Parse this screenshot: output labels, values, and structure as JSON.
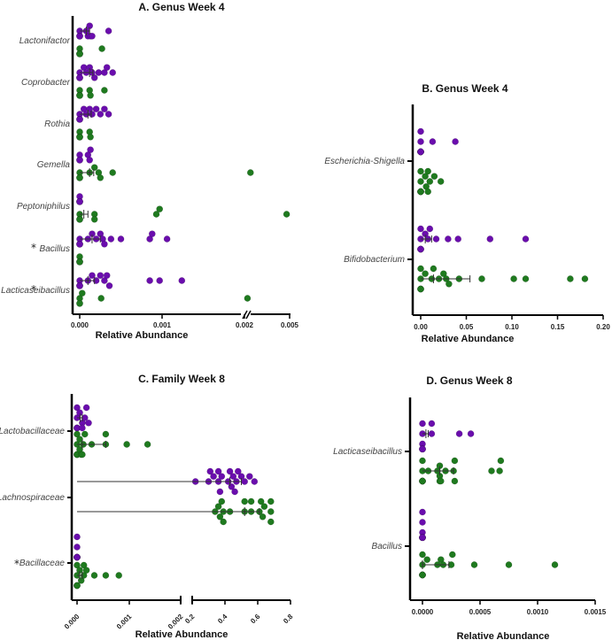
{
  "colors": {
    "group1": "#6a0dad",
    "group2": "#1f7a1f",
    "axis": "#000000",
    "errorbar": "#333333"
  },
  "chart_data": [
    {
      "id": "A",
      "type": "scatter",
      "title": "A. Genus Week 4",
      "xlabel": "Relative Abundance",
      "ylabel": "",
      "orientation": "horizontal",
      "axis_break": {
        "from": 0.0015,
        "to": 0.002,
        "upper_range": [
          0.002,
          0.005
        ]
      },
      "xlim": [
        0,
        0.005
      ],
      "xticks": [
        "0.000",
        "0.001",
        "0.002",
        "0.005"
      ],
      "grid": false,
      "categories": [
        {
          "name": "Lactonifactor",
          "marker": "",
          "purple": [
            0,
            0,
            0,
            0,
            0,
            8e-05,
            0.00012,
            0.00015,
            0.0001,
            0.00013,
            0.00035
          ],
          "purple_mean": 8e-05,
          "purple_sem": 4e-05,
          "green": [
            0,
            0,
            0,
            0,
            0,
            0,
            0.00027
          ]
        },
        {
          "name": "Coprobacter",
          "marker": "",
          "purple": [
            0,
            0,
            0,
            0,
            0,
            5e-05,
            8e-05,
            0.00012,
            0.00015,
            0.00018,
            0.00023,
            0.0003,
            0.00033,
            0.0004
          ],
          "purple_mean": 0.00012,
          "purple_sem": 4e-05,
          "green": [
            0,
            0,
            0,
            0,
            0,
            0.00012,
            0.00013,
            0.0003
          ]
        },
        {
          "name": "Rothia",
          "marker": "",
          "purple": [
            0,
            0,
            0,
            0,
            0,
            5e-05,
            8e-05,
            0.00012,
            0.00015,
            0.0002,
            0.00025,
            0.0003,
            0.00035
          ],
          "purple_mean": 0.0001,
          "purple_sem": 4e-05,
          "green": [
            0,
            0,
            0,
            0,
            0,
            0.00013,
            0.00012
          ]
        },
        {
          "name": "Gemella",
          "marker": "",
          "purple": [
            0,
            0,
            0,
            0,
            0.00012,
            0.00013,
            0.0001
          ],
          "green": [
            0,
            0,
            0,
            0,
            0.00012,
            0.00018,
            0.00025,
            0.00023,
            0.0004,
            0.0024
          ],
          "green_mean": 0.00012,
          "green_sem": 5e-05
        },
        {
          "name": "Peptoniphilus",
          "marker": "",
          "purple": [
            0,
            0,
            0,
            0,
            0,
            0
          ],
          "green": [
            0,
            0,
            0,
            0,
            0.00018,
            0.00018,
            0.00097,
            0.00093,
            0.0048
          ],
          "green_mean": 5e-05,
          "green_sem": 5e-05
        },
        {
          "name": "Bacillus",
          "marker": "*",
          "purple": [
            0,
            0,
            0,
            0,
            0,
            0.0001,
            0.00015,
            0.0002,
            0.00025,
            0.00028,
            0.0003,
            0.00038,
            0.0005,
            0.00088,
            0.00085,
            0.00106
          ],
          "purple_mean": 0.00015,
          "purple_sem": 0.0001,
          "green": [
            0,
            0,
            0,
            0,
            0
          ]
        },
        {
          "name": "Lacticaseibacillus",
          "marker": "*",
          "purple": [
            0,
            0,
            0,
            0,
            0,
            0.0001,
            0.00015,
            0.0002,
            0.00025,
            0.0003,
            0.00033,
            0.00036,
            0.00085,
            0.00097,
            0.00124
          ],
          "purple_mean": 0.0001,
          "purple_sem": 8e-05,
          "green": [
            0,
            0,
            0,
            3e-05,
            0.00026,
            0.0022
          ]
        }
      ]
    },
    {
      "id": "B",
      "type": "scatter",
      "title": "B. Genus Week 4",
      "xlabel": "Relative Abundance",
      "orientation": "horizontal",
      "xlim": [
        0,
        0.2
      ],
      "xticks": [
        "0.00",
        "0.05",
        "0.10",
        "0.15",
        "0.20"
      ],
      "grid": false,
      "categories": [
        {
          "name": "Escherichia-Shigella",
          "purple": [
            0,
            0,
            0,
            0,
            0,
            0,
            0,
            0,
            0,
            0,
            0.013,
            0.038
          ],
          "green": [
            0,
            0,
            0,
            0,
            0,
            0,
            0,
            0,
            0.005,
            0.008,
            0.006,
            0.01,
            0.022,
            0.015,
            0.008
          ]
        },
        {
          "name": "Bifidobacterium",
          "purple": [
            0,
            0,
            0,
            0,
            0,
            0,
            0,
            0.005,
            0.008,
            0.01,
            0.017,
            0.03,
            0.041,
            0.076,
            0.115
          ],
          "purple_mean": 0.005,
          "purple_sem": 0.007,
          "green": [
            0,
            0,
            0,
            0,
            0,
            0,
            0.005,
            0.012,
            0.014,
            0.02,
            0.025,
            0.028,
            0.031,
            0.042,
            0.067,
            0.102,
            0.115,
            0.164,
            0.18
          ],
          "green_mean": 0.014,
          "green_sem": 0.04
        }
      ]
    },
    {
      "id": "C",
      "type": "scatter",
      "title": "C. Family Week 8",
      "xlabel": "Relative Abundance",
      "orientation": "horizontal",
      "axis_break": {
        "lower_range": [
          0,
          0.002
        ],
        "upper_range": [
          0.2,
          0.8
        ]
      },
      "xticks": [
        "0.000",
        "0.001",
        "0.002",
        "0.2",
        "0.4",
        "0.6",
        "0.8"
      ],
      "grid": false,
      "categories": [
        {
          "name": "Lactobacillaceae",
          "marker": "",
          "purple": [
            0,
            0,
            0,
            0,
            0,
            0,
            5e-05,
            0.0001,
            0.00015,
            0.00022,
            0.00018,
            0.0001
          ],
          "purple_mean": 6e-05,
          "purple_sem": 4e-05,
          "green": [
            0,
            0,
            0,
            0,
            0,
            0,
            5e-05,
            0.00012,
            8e-05,
            0.00015,
            0.00028,
            0.00055,
            0.00055,
            0.00095,
            0.00135,
            0.0001,
            5e-05
          ],
          "green_mean": 0.0001,
          "green_sem": 0.00045
        },
        {
          "name": "Lachnospiraceae",
          "marker": "",
          "purple": [
            0.22,
            0.3,
            0.33,
            0.37,
            0.36,
            0.38,
            0.43,
            0.46,
            0.44,
            0.45,
            0.47,
            0.48,
            0.5,
            0.52,
            0.55,
            0.58,
            0.31,
            0.36,
            0.42
          ],
          "purple_mean": 0.43,
          "purple_sem": 0.07,
          "green": [
            0.34,
            0.36,
            0.37,
            0.38,
            0.39,
            0.39,
            0.43,
            0.52,
            0.52,
            0.56,
            0.56,
            0.61,
            0.63,
            0.64,
            0.68,
            0.68,
            0.68,
            0.62
          ],
          "green_mean": 0.52,
          "green_sem": 0.09
        },
        {
          "name": "Bacillaceae",
          "marker": "*",
          "purple": [
            0,
            0,
            0,
            0,
            0,
            0,
            0,
            0,
            0
          ],
          "green": [
            0,
            0,
            0,
            0,
            0,
            0,
            5e-05,
            0.00013,
            0.00018,
            0.00013,
            8e-05,
            0.00033,
            0.00055,
            0.0008
          ],
          "green_mean": 5e-05,
          "green_sem": 5e-05
        }
      ]
    },
    {
      "id": "D",
      "type": "scatter",
      "title": "D. Genus Week 8",
      "xlabel": "Relative Abundance",
      "orientation": "horizontal",
      "xlim": [
        0,
        0.0015
      ],
      "xticks": [
        "0.0000",
        "0.0005",
        "0.0010",
        "0.0015"
      ],
      "grid": false,
      "categories": [
        {
          "name": "Lacticaseibacillus",
          "purple": [
            0,
            0,
            0,
            0,
            0,
            0,
            0,
            0,
            8e-05,
            8e-05,
            0.00032,
            0.00042
          ],
          "purple_mean": 3e-05,
          "purple_sem": 2e-05,
          "green": [
            0,
            0,
            0,
            0,
            0,
            0,
            0,
            0,
            5e-05,
            0.00015,
            0.00015,
            0.00016,
            0.0002,
            0.00015,
            0.00028,
            0.00028,
            0.00027,
            0.00013,
            0.0006,
            0.00068,
            0.00067
          ],
          "green_mean": 0.00015,
          "green_sem": 0.00012
        },
        {
          "name": "Bacillus",
          "purple": [
            0,
            0,
            0,
            0,
            0,
            0,
            0,
            0,
            0,
            0,
            0
          ],
          "green": [
            0,
            0,
            0,
            0,
            0,
            0,
            0,
            0,
            4e-05,
            0.00013,
            0.00016,
            0.00018,
            0.00026,
            0.00025,
            0.00045,
            0.00075,
            0.00115
          ],
          "green_mean": 0,
          "green_sem": 0.00023
        }
      ]
    }
  ]
}
